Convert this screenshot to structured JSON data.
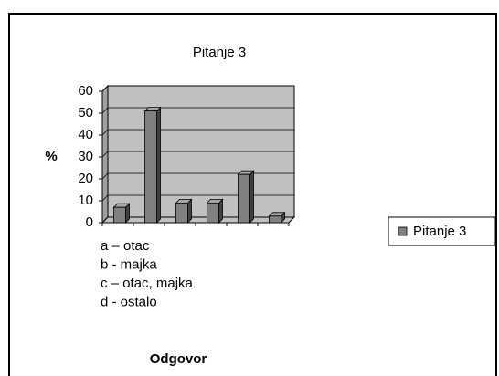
{
  "chart_data": {
    "type": "bar",
    "title": "Pitanje 3",
    "y_label": "%",
    "x_label": "Odgovor",
    "notes": [
      "a – otac",
      "b - majka",
      "c – otac, majka",
      "d - ostalo"
    ],
    "categories": [
      null,
      null,
      null,
      null,
      null,
      null
    ],
    "series": [
      {
        "name": "Pitanje 3",
        "color": "#808080",
        "values": [
          7,
          51,
          9,
          9,
          22,
          3
        ]
      }
    ],
    "ylim": [
      0,
      60
    ],
    "yticks": [
      0,
      10,
      20,
      30,
      40,
      50,
      60
    ],
    "grid": true,
    "legend": "right"
  }
}
